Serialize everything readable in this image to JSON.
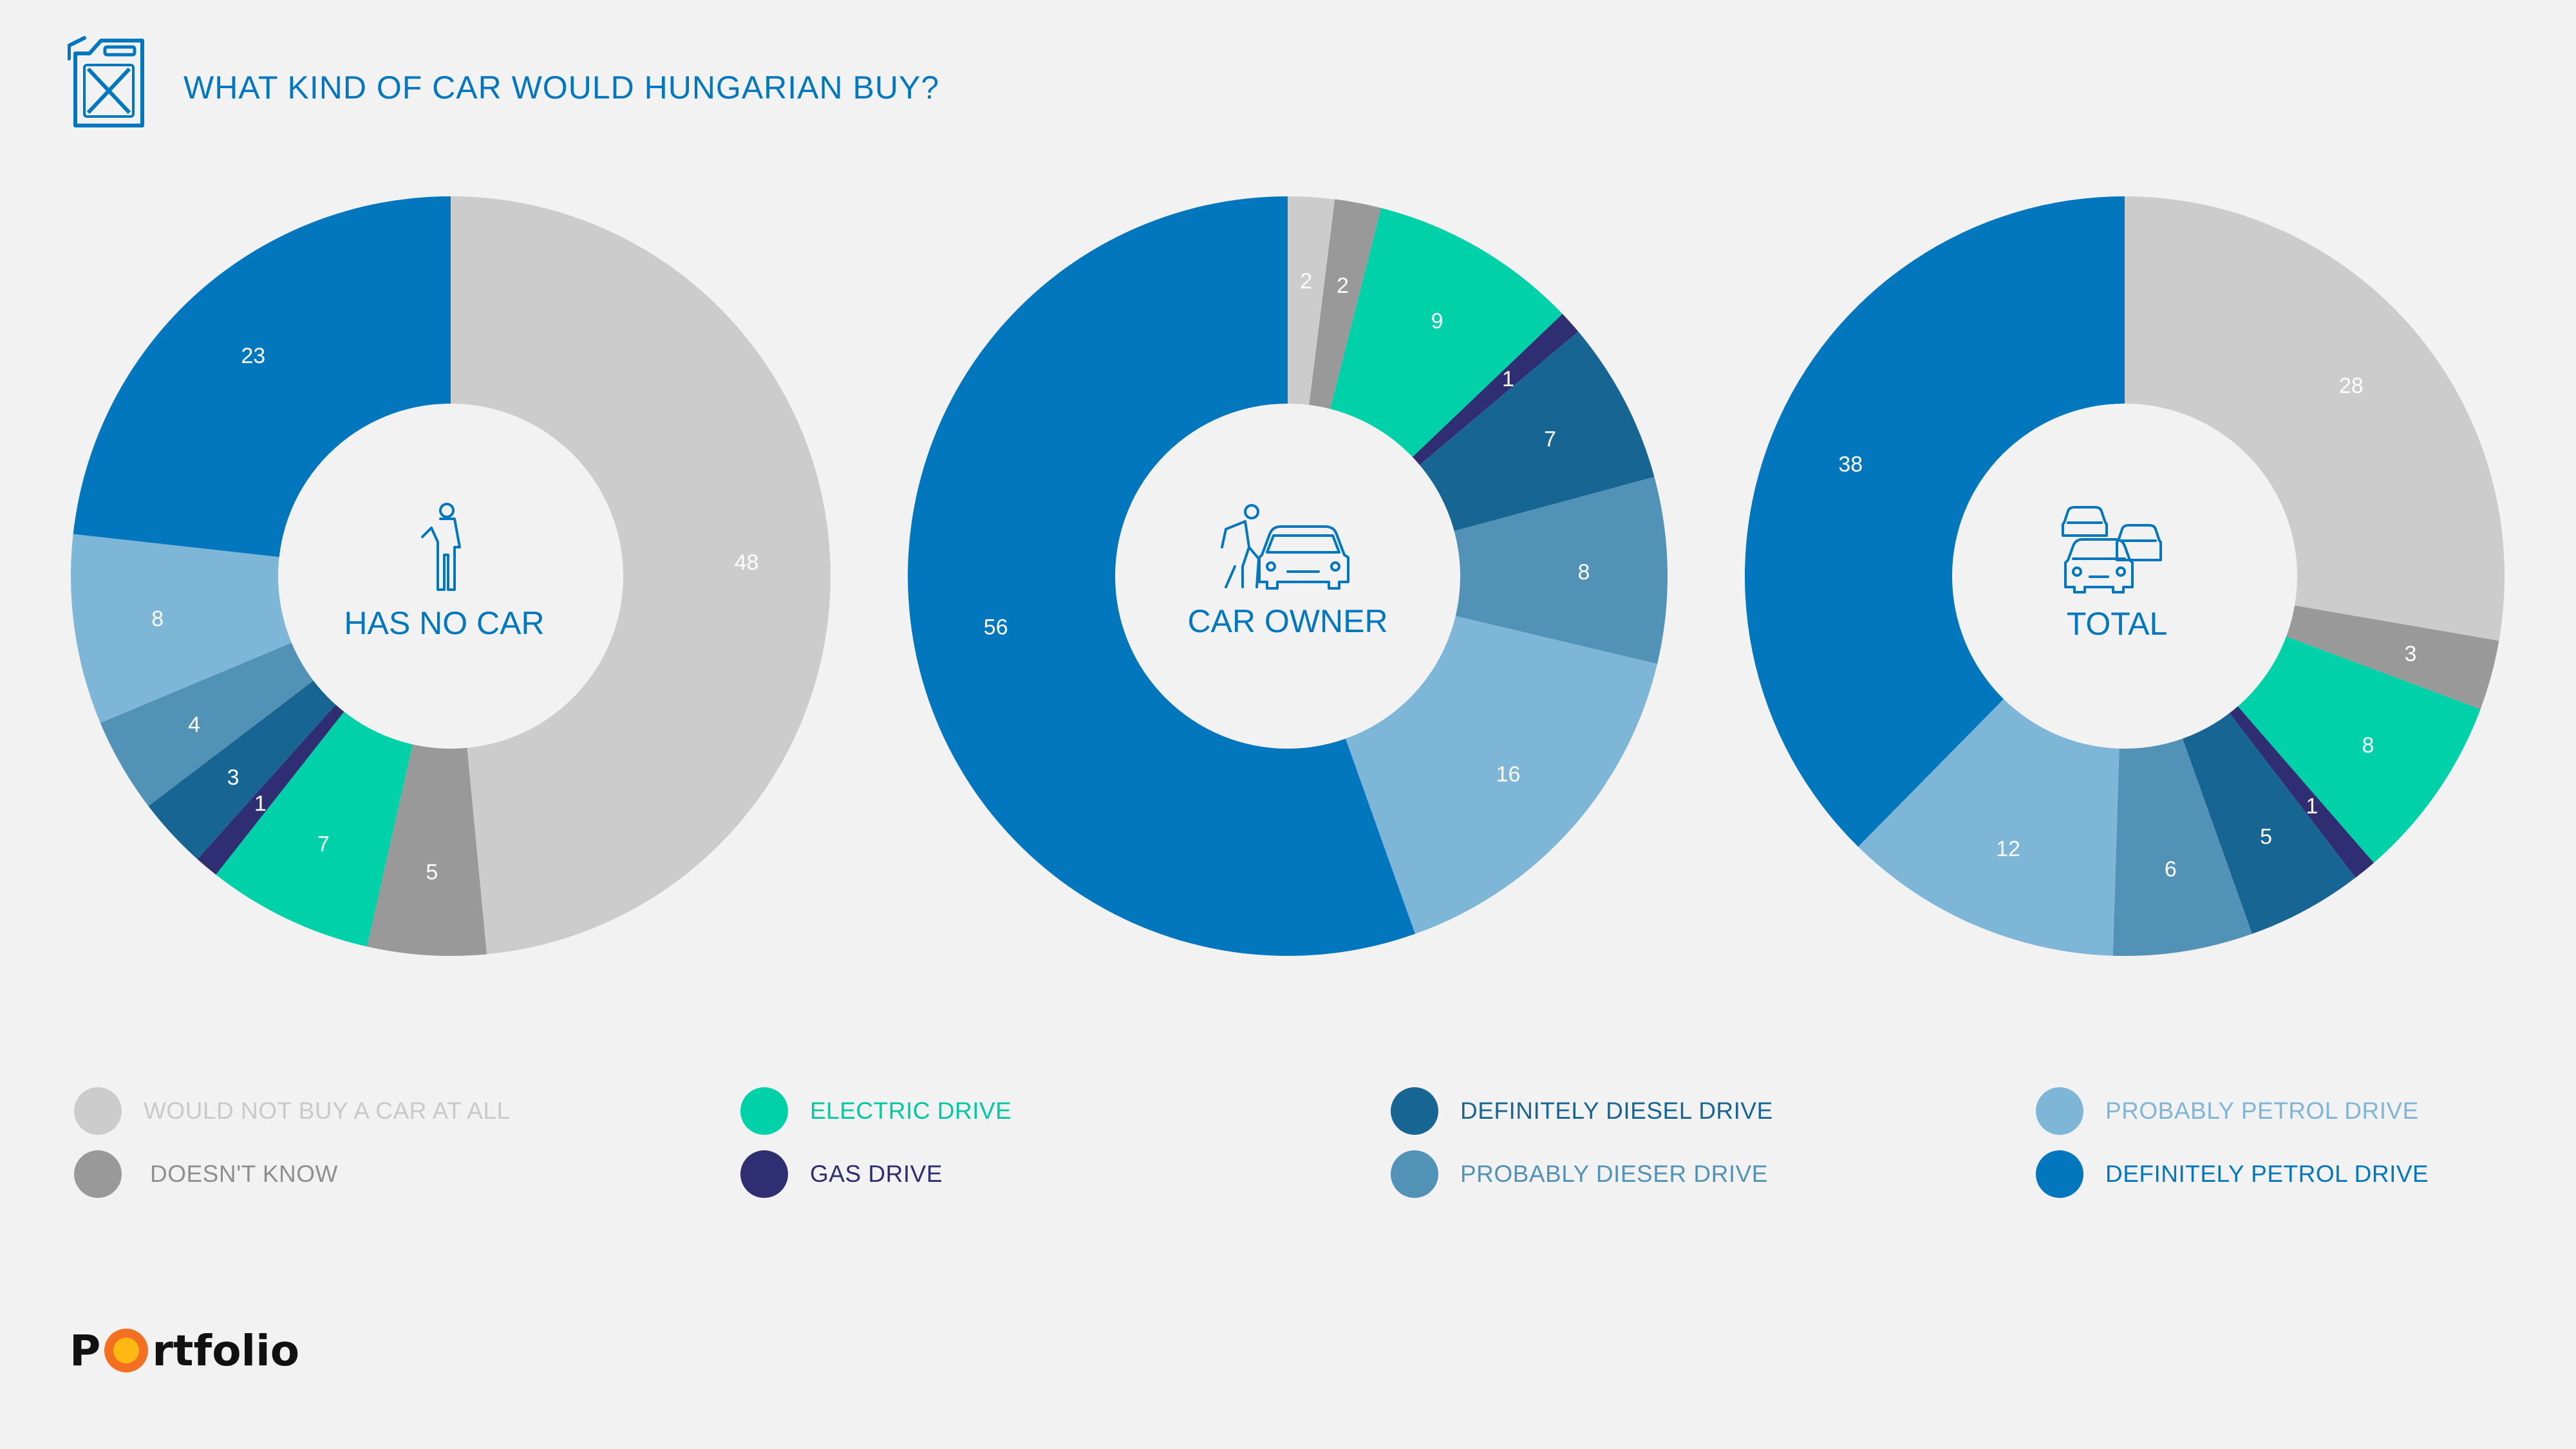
{
  "title": "WHAT KIND OF CAR WOULD HUNGARIAN BUY?",
  "header_icon": "fuel-canister-icon",
  "colors": {
    "accent": "#0077be",
    "background": "#f2f2f2"
  },
  "legend": [
    {
      "key": "would_not_buy",
      "label": "WOULD NOT BUY A CAR AT ALL",
      "color": "#cccccc",
      "text_color": "#c9c9c9"
    },
    {
      "key": "doesnt_know",
      "label": "DOESN'T KNOW",
      "color": "#999999",
      "text_color": "#8f8f8f"
    },
    {
      "key": "electric",
      "label": "ELECTRIC DRIVE",
      "color": "#00d1a8",
      "text_color": "#00c9a2"
    },
    {
      "key": "gas",
      "label": "GAS DRIVE",
      "color": "#302e72",
      "text_color": "#2e2d6e"
    },
    {
      "key": "def_diesel",
      "label": "DEFINITELY DIESEL DRIVE",
      "color": "#176593",
      "text_color": "#176593"
    },
    {
      "key": "prob_diesel",
      "label": "PROBABLY DIESER DRIVE",
      "color": "#5292b6",
      "text_color": "#5292b6"
    },
    {
      "key": "prob_petrol",
      "label": "PROBABLY PETROL DRIVE",
      "color": "#7eb6d7",
      "text_color": "#7eb6d7"
    },
    {
      "key": "def_petrol",
      "label": "DEFINITELY PETROL DRIVE",
      "color": "#0277bd",
      "text_color": "#0277bd"
    }
  ],
  "chart_data": [
    {
      "type": "pie",
      "center_label": "HAS NO CAR",
      "icon": "person-icon",
      "categories": [
        "WOULD NOT BUY A CAR AT ALL",
        "DOESN'T KNOW",
        "ELECTRIC DRIVE",
        "GAS DRIVE",
        "DEFINITELY DIESEL DRIVE",
        "PROBABLY DIESER DRIVE",
        "PROBABLY PETROL DRIVE",
        "DEFINITELY PETROL DRIVE"
      ],
      "values": [
        48,
        5,
        7,
        1,
        3,
        4,
        8,
        23
      ]
    },
    {
      "type": "pie",
      "center_label": "CAR OWNER",
      "icon": "person-with-car-icon",
      "categories": [
        "WOULD NOT BUY A CAR AT ALL",
        "DOESN'T KNOW",
        "ELECTRIC DRIVE",
        "GAS DRIVE",
        "DEFINITELY DIESEL DRIVE",
        "PROBABLY DIESER DRIVE",
        "PROBABLY PETROL DRIVE",
        "DEFINITELY PETROL DRIVE"
      ],
      "values": [
        2,
        2,
        9,
        1,
        7,
        8,
        16,
        56
      ]
    },
    {
      "type": "pie",
      "center_label": "TOTAL",
      "icon": "cars-icon",
      "categories": [
        "WOULD NOT BUY A CAR AT ALL",
        "DOESN'T KNOW",
        "ELECTRIC DRIVE",
        "GAS DRIVE",
        "DEFINITELY DIESEL DRIVE",
        "PROBABLY DIESER DRIVE",
        "PROBABLY PETROL DRIVE",
        "DEFINITELY PETROL DRIVE"
      ],
      "values": [
        28,
        3,
        8,
        1,
        5,
        6,
        12,
        38
      ]
    }
  ],
  "logo": {
    "before": "P",
    "after": "rtfolio",
    "mark_outer_color": "#f36f21",
    "mark_inner_color": "#fcb813"
  }
}
